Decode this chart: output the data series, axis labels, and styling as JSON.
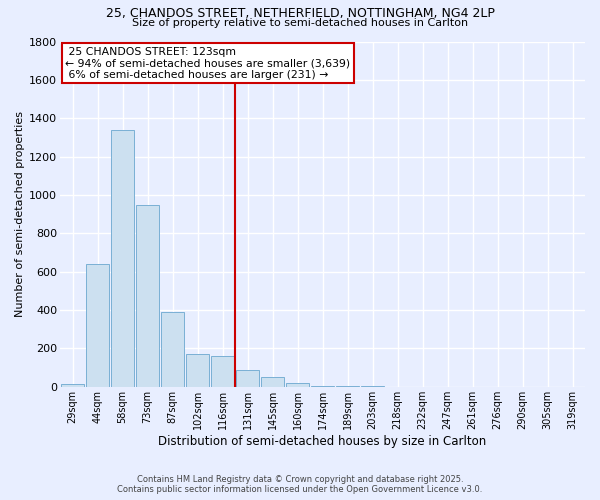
{
  "title_line1": "25, CHANDOS STREET, NETHERFIELD, NOTTINGHAM, NG4 2LP",
  "title_line2": "Size of property relative to semi-detached houses in Carlton",
  "xlabel": "Distribution of semi-detached houses by size in Carlton",
  "ylabel": "Number of semi-detached properties",
  "bin_labels": [
    "29sqm",
    "44sqm",
    "58sqm",
    "73sqm",
    "87sqm",
    "102sqm",
    "116sqm",
    "131sqm",
    "145sqm",
    "160sqm",
    "174sqm",
    "189sqm",
    "203sqm",
    "218sqm",
    "232sqm",
    "247sqm",
    "261sqm",
    "276sqm",
    "290sqm",
    "305sqm",
    "319sqm"
  ],
  "bar_values": [
    15,
    640,
    1340,
    950,
    390,
    170,
    160,
    85,
    50,
    20,
    5,
    2,
    2,
    0,
    0,
    0,
    0,
    0,
    0,
    0,
    0
  ],
  "bar_color": "#cce0f0",
  "bar_edgecolor": "#7ab0d4",
  "property_label": "25 CHANDOS STREET: 123sqm",
  "pct_smaller": 94,
  "count_smaller": 3639,
  "pct_larger": 6,
  "count_larger": 231,
  "vline_color": "#cc0000",
  "background_color": "#e8eeff",
  "grid_color": "#ffffff",
  "footer_line1": "Contains HM Land Registry data © Crown copyright and database right 2025.",
  "footer_line2": "Contains public sector information licensed under the Open Government Licence v3.0.",
  "ylim": [
    0,
    1800
  ],
  "yticks": [
    0,
    200,
    400,
    600,
    800,
    1000,
    1200,
    1400,
    1600,
    1800
  ]
}
